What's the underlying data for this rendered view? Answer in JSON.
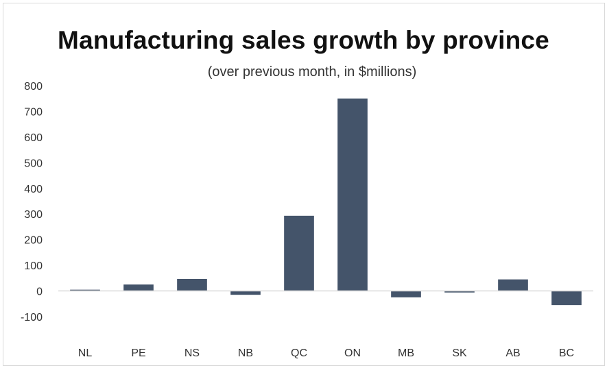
{
  "chart_data": {
    "type": "bar",
    "title": "Manufacturing sales growth by province",
    "subtitle": "(over previous month, in $millions)",
    "xlabel": "",
    "ylabel": "",
    "categories": [
      "NL",
      "PE",
      "NS",
      "NB",
      "QC",
      "ON",
      "MB",
      "SK",
      "AB",
      "BC"
    ],
    "values": [
      5,
      25,
      47,
      -15,
      293,
      750,
      -25,
      -6,
      45,
      -55
    ],
    "ylim": [
      -100,
      800
    ],
    "yticks": [
      -100,
      0,
      100,
      200,
      300,
      400,
      500,
      600,
      700,
      800
    ],
    "ytick_labels": [
      "-100",
      "0",
      "100",
      "200",
      "300",
      "400",
      "500",
      "600",
      "700",
      "800"
    ],
    "grid": false,
    "legend": "none",
    "bar_color": "#44546a",
    "zero_line_color": "#d9d9d9"
  }
}
